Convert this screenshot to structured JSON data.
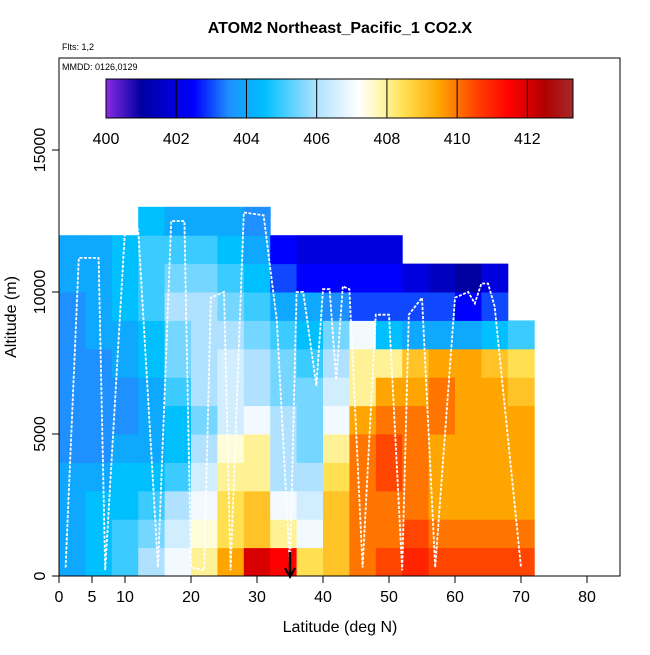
{
  "chart_data": {
    "type": "heatmap",
    "title": "ATOM2 Northeast_Pacific_1 CO2.X",
    "subtitle": "Flts: 1,2",
    "subtitle2": "MMDD: 0126,0129",
    "x_label": "Latitude (deg N)",
    "y_label": "Altitude (m)",
    "xlim": [
      0,
      85
    ],
    "xticks": [
      0,
      5,
      10,
      20,
      30,
      40,
      50,
      60,
      70,
      80
    ],
    "ylim": [
      0,
      18240
    ],
    "yticks": [
      0,
      5000,
      10000,
      15000
    ],
    "x_bins": [
      0,
      4,
      8,
      12,
      16,
      20,
      24,
      28,
      32,
      36,
      40,
      44,
      48,
      52,
      56,
      60,
      64,
      68,
      72
    ],
    "y_bins": [
      0,
      1000,
      2000,
      3000,
      4000,
      5000,
      6000,
      7000,
      8000,
      9000,
      10000,
      11000,
      12000,
      13000
    ],
    "values": [
      [
        404,
        404.5,
        405,
        406,
        407,
        408,
        409.5,
        412,
        411.5,
        408.5,
        409,
        410,
        410.5,
        411,
        410.5,
        410.5,
        410.5,
        410.5
      ],
      [
        404,
        404.5,
        405,
        405.5,
        406.5,
        407.5,
        408.5,
        409,
        408,
        407,
        409,
        410,
        410,
        410.5,
        410,
        410,
        410,
        410
      ],
      [
        404,
        404.5,
        404.5,
        405,
        406,
        407,
        408.5,
        409,
        407,
        406.5,
        409,
        410,
        410,
        410,
        409.5,
        409.5,
        409.5,
        409.5
      ],
      [
        404,
        404,
        404.5,
        404.5,
        405,
        406.5,
        408,
        408,
        406,
        406,
        408.5,
        410,
        410.5,
        410,
        409.5,
        409.5,
        409.5,
        409.5
      ],
      [
        403.5,
        403.5,
        404,
        404,
        404.5,
        406,
        407.5,
        408,
        406,
        405.5,
        408,
        410,
        410.5,
        410,
        409.5,
        409.5,
        409.5,
        409.5
      ],
      [
        403.5,
        403.5,
        403.5,
        404,
        404.5,
        405.5,
        406.5,
        407,
        406,
        405.5,
        407,
        409.5,
        410,
        410,
        410,
        409.5,
        409.5,
        409.5
      ],
      [
        403.5,
        403.5,
        403.5,
        404,
        405,
        406,
        406.5,
        406,
        405.5,
        405.5,
        406.5,
        408,
        409.5,
        409.5,
        410,
        409.5,
        409.5,
        409
      ],
      [
        403.5,
        403.5,
        404,
        404.5,
        405.5,
        406,
        406.5,
        406,
        405.5,
        405,
        406,
        408,
        408,
        409,
        409.5,
        409.5,
        409,
        408.5
      ],
      [
        403.5,
        404,
        404,
        404.5,
        405.5,
        406,
        406,
        405.5,
        405,
        404.5,
        405.5,
        407,
        404.5,
        404,
        404,
        404,
        404.5,
        405
      ],
      [
        403.5,
        404,
        404.5,
        405,
        406,
        406,
        405.5,
        405,
        404,
        404,
        403.5,
        403,
        403,
        403,
        403,
        402.5,
        403,
        null
      ],
      [
        404,
        404,
        404.5,
        405,
        405.5,
        405.5,
        405,
        404.5,
        403,
        402.5,
        402.5,
        402.5,
        402.5,
        402,
        401.5,
        401,
        402,
        null
      ],
      [
        404,
        404,
        404.5,
        405,
        405,
        405,
        404.5,
        404,
        402.5,
        402,
        402,
        402,
        402,
        null,
        null,
        null,
        null,
        null
      ],
      [
        null,
        null,
        null,
        404.5,
        404,
        404,
        404,
        403.5,
        null,
        null,
        null,
        null,
        null,
        null,
        null,
        null,
        null,
        null
      ]
    ],
    "track_lat": [
      1,
      3,
      6,
      7,
      10,
      12,
      15,
      17,
      19,
      20,
      22,
      23,
      25,
      26,
      28,
      31,
      33,
      35,
      36,
      37,
      39,
      40,
      41,
      42,
      43,
      44,
      46,
      48,
      50,
      52,
      53,
      55,
      57,
      60,
      62,
      63,
      64,
      65,
      66,
      70
    ],
    "track_alt": [
      300,
      11200,
      11200,
      200,
      12200,
      12200,
      300,
      12500,
      12500,
      300,
      200,
      9800,
      10000,
      200,
      12800,
      12700,
      9000,
      300,
      10000,
      10000,
      6700,
      10100,
      10100,
      6900,
      10200,
      10100,
      300,
      9200,
      9200,
      200,
      9200,
      9800,
      300,
      9800,
      10000,
      9600,
      10300,
      10300,
      9500,
      300
    ],
    "track_color": "#ffffff",
    "colorbar_lim": [
      400,
      413.3
    ],
    "colorbar_ticks": [
      400,
      402,
      404,
      406,
      408,
      410,
      412
    ],
    "colorscale": [
      [
        400,
        "#8a2be2"
      ],
      [
        401,
        "#0000a0"
      ],
      [
        402.5,
        "#0000ff"
      ],
      [
        403.5,
        "#1e90ff"
      ],
      [
        404.5,
        "#00bfff"
      ],
      [
        406,
        "#b0e2ff"
      ],
      [
        407.2,
        "#ffffff"
      ],
      [
        407.8,
        "#fff8b0"
      ],
      [
        408.5,
        "#ffe050"
      ],
      [
        409.5,
        "#ffa500"
      ],
      [
        410.5,
        "#ff4500"
      ],
      [
        411.5,
        "#ff0000"
      ],
      [
        412.5,
        "#b00000"
      ],
      [
        413.3,
        "#a52a2a"
      ]
    ]
  }
}
